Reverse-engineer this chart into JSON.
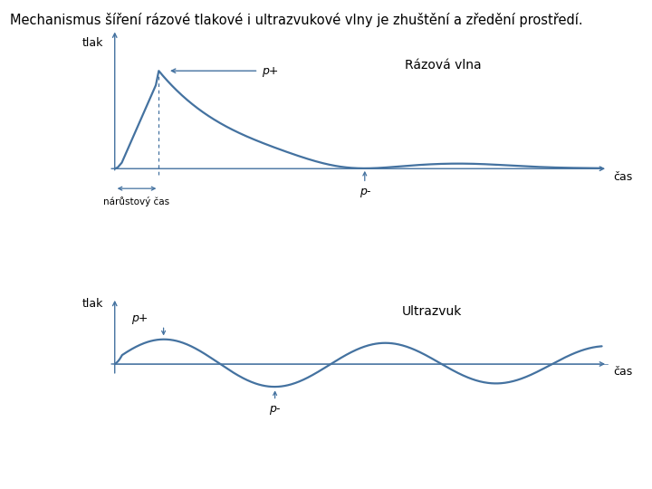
{
  "title": "Mechanismus šíření rázové tlakové i ultrazvukové vlny je zhuštění a zředění prostředí.",
  "title_fontsize": 10.5,
  "background_color": "#ffffff",
  "line_color": "#4472a0",
  "axis_color": "#4472a0",
  "text_color": "#000000",
  "top_label": "Rázová vlna",
  "bottom_label": "Ultrazvuk",
  "tlak_label": "tlak",
  "cas_label": "čas",
  "p_plus_label": "p+",
  "p_minus_label": "p-",
  "narust_label": "nárůstový čas"
}
